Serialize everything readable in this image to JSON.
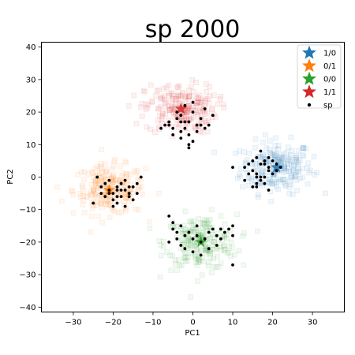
{
  "chart_data": {
    "type": "scatter",
    "title": "sp 2000",
    "xlabel": "PC1",
    "ylabel": "PC2",
    "xlim": [
      -38,
      38
    ],
    "ylim": [
      -41.5,
      41.5
    ],
    "xticks": [
      -30,
      -20,
      -10,
      0,
      10,
      20,
      30
    ],
    "yticks": [
      -40,
      -30,
      -20,
      -10,
      0,
      10,
      20,
      30,
      40
    ],
    "grid": false,
    "legend_position": "top-right",
    "legend": [
      {
        "label": "1/0",
        "marker": "star",
        "color": "#1f77b4"
      },
      {
        "label": "0/1",
        "marker": "star",
        "color": "#ff7f0e"
      },
      {
        "label": "0/0",
        "marker": "star",
        "color": "#2ca02c"
      },
      {
        "label": "1/1",
        "marker": "star",
        "color": "#d62728"
      },
      {
        "label": "sp",
        "marker": "dot",
        "color": "#000000"
      }
    ],
    "clusters": [
      {
        "label": "1/0",
        "color": "#1f77b4",
        "center": [
          21,
          3
        ],
        "spread": [
          4.5,
          4
        ]
      },
      {
        "label": "0/1",
        "color": "#ff7f0e",
        "center": [
          -21,
          -4
        ],
        "spread": [
          4.5,
          3.8
        ]
      },
      {
        "label": "0/0",
        "color": "#2ca02c",
        "center": [
          2,
          -20
        ],
        "spread": [
          4.5,
          4.2
        ]
      },
      {
        "label": "1/1",
        "color": "#d62728",
        "center": [
          -3,
          21
        ],
        "spread": [
          4.5,
          3.8
        ]
      }
    ],
    "series": [
      {
        "name": "sp",
        "color": "#000000",
        "points": [
          [
            -3,
            19
          ],
          [
            -2,
            17
          ],
          [
            -4,
            18
          ],
          [
            0,
            20
          ],
          [
            -1,
            17
          ],
          [
            1,
            16
          ],
          [
            -5,
            15
          ],
          [
            -6,
            16
          ],
          [
            -2,
            22
          ],
          [
            3,
            21
          ],
          [
            2,
            16
          ],
          [
            -3,
            14
          ],
          [
            -1,
            13
          ],
          [
            0,
            11
          ],
          [
            -1,
            10
          ],
          [
            -3,
            12
          ],
          [
            2,
            18
          ],
          [
            -4,
            20
          ],
          [
            -6,
            17
          ],
          [
            -7,
            16
          ],
          [
            0,
            23
          ],
          [
            4,
            16
          ],
          [
            5,
            19
          ],
          [
            -2,
            15
          ],
          [
            1,
            14
          ],
          [
            -3,
            17
          ],
          [
            -5,
            13
          ],
          [
            3,
            15
          ],
          [
            -8,
            15
          ],
          [
            -1,
            9
          ],
          [
            13,
            3
          ],
          [
            15,
            2
          ],
          [
            16,
            0
          ],
          [
            17,
            4
          ],
          [
            18,
            5
          ],
          [
            19,
            2
          ],
          [
            20,
            1
          ],
          [
            17,
            -1
          ],
          [
            16,
            -3
          ],
          [
            18,
            -2
          ],
          [
            19,
            3
          ],
          [
            21,
            2
          ],
          [
            16,
            6
          ],
          [
            15,
            5
          ],
          [
            14,
            1
          ],
          [
            17,
            0
          ],
          [
            16,
            -2
          ],
          [
            19,
            -4
          ],
          [
            18,
            4
          ],
          [
            20,
            5
          ],
          [
            21,
            4
          ],
          [
            13,
            -1
          ],
          [
            15,
            -3
          ],
          [
            14,
            4
          ],
          [
            17,
            8
          ],
          [
            19,
            6
          ],
          [
            22,
            3
          ],
          [
            10,
            3
          ],
          [
            18,
            0
          ],
          [
            16,
            1
          ],
          [
            -23,
            -3
          ],
          [
            -21,
            -4
          ],
          [
            -20,
            -5
          ],
          [
            -19,
            -3
          ],
          [
            -18,
            -2
          ],
          [
            -17,
            -4
          ],
          [
            -16,
            -5
          ],
          [
            -15,
            -3
          ],
          [
            -18,
            -6
          ],
          [
            -20,
            -7
          ],
          [
            -22,
            -2
          ],
          [
            -21,
            -1
          ],
          [
            -19,
            -8
          ],
          [
            -17,
            -9
          ],
          [
            -16,
            -6
          ],
          [
            -14,
            -2
          ],
          [
            -13,
            0
          ],
          [
            -24,
            0
          ],
          [
            -25,
            -8
          ],
          [
            -20,
            -9
          ],
          [
            -22,
            -6
          ],
          [
            -19,
            -4
          ],
          [
            -18,
            -4
          ],
          [
            -16,
            -3
          ],
          [
            -15,
            -7
          ],
          [
            -17,
            -1
          ],
          [
            -21,
            -5
          ],
          [
            -19,
            -6
          ],
          [
            -23,
            -5
          ],
          [
            -14,
            -5
          ],
          [
            -6,
            -12
          ],
          [
            -5,
            -16
          ],
          [
            -4,
            -17
          ],
          [
            -3,
            -15
          ],
          [
            -2,
            -18
          ],
          [
            -1,
            -17
          ],
          [
            0,
            -19
          ],
          [
            1,
            -18
          ],
          [
            2,
            -20
          ],
          [
            3,
            -19
          ],
          [
            4,
            -17
          ],
          [
            5,
            -16
          ],
          [
            6,
            -18
          ],
          [
            7,
            -19
          ],
          [
            8,
            -17
          ],
          [
            9,
            -16
          ],
          [
            10,
            -15
          ],
          [
            10,
            -18
          ],
          [
            -4,
            -19
          ],
          [
            -3,
            -21
          ],
          [
            -2,
            -22
          ],
          [
            0,
            -23
          ],
          [
            2,
            -24
          ],
          [
            4,
            -22
          ],
          [
            6,
            -21
          ],
          [
            -6,
            -20
          ],
          [
            7,
            -16
          ],
          [
            -5,
            -14
          ],
          [
            1,
            -15
          ],
          [
            10,
            -27
          ]
        ]
      }
    ]
  }
}
